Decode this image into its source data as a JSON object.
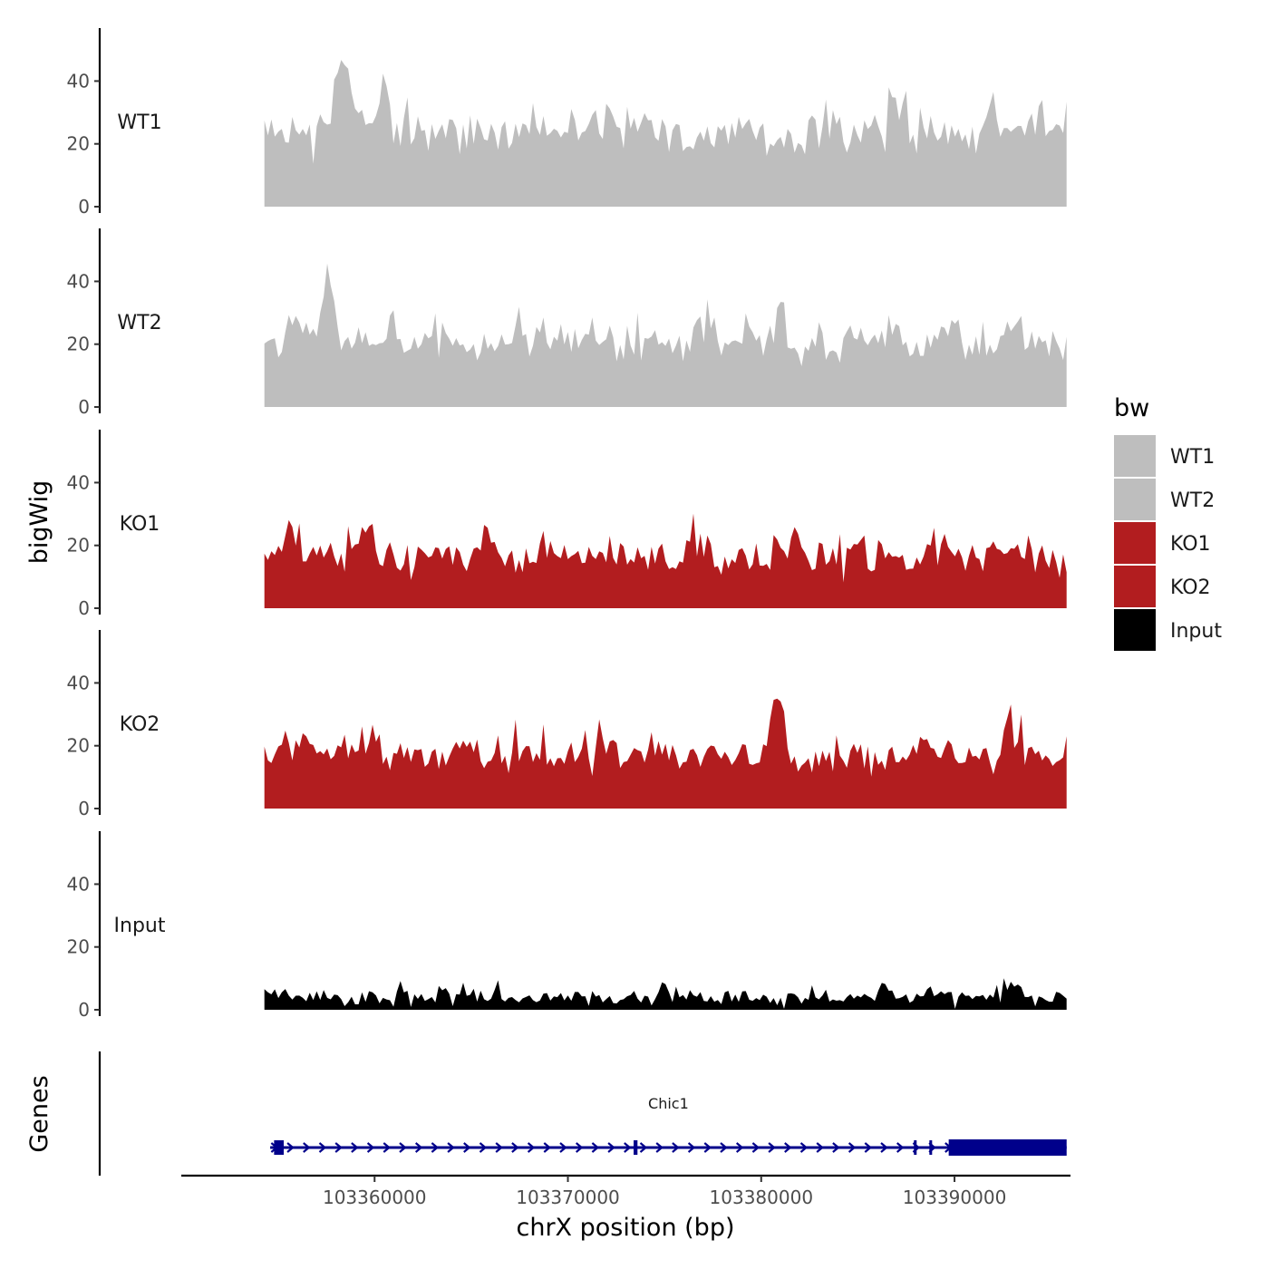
{
  "chart_data": {
    "type": "area",
    "title": "",
    "ylabel": "bigWig",
    "genes_label": "Genes",
    "xlabel": "chrX position (bp)",
    "xlim": [
      103350000,
      103396000
    ],
    "ylim": [
      0,
      56
    ],
    "x_ticks": [
      103360000,
      103370000,
      103380000,
      103390000
    ],
    "x_tick_labels": [
      "103360000",
      "103370000",
      "103380000",
      "103390000"
    ],
    "y_ticks": [
      0,
      20,
      40
    ],
    "y_tick_labels": [
      "0",
      "20",
      "40"
    ],
    "data_range": [
      103354300,
      103395800
    ],
    "legend": {
      "title": "bw",
      "position": "right"
    },
    "series": [
      {
        "name": "WT1",
        "color": "#bebebe",
        "baseline": 24,
        "spread": 10,
        "peaks": [
          [
            103358200,
            30
          ],
          [
            103358700,
            20
          ],
          [
            103360500,
            14
          ],
          [
            103373500,
            6
          ],
          [
            103387000,
            14
          ],
          [
            103392000,
            18
          ]
        ]
      },
      {
        "name": "WT2",
        "color": "#bebebe",
        "baseline": 21,
        "spread": 9,
        "peaks": [
          [
            103357500,
            22
          ],
          [
            103361000,
            8
          ],
          [
            103374500,
            4
          ],
          [
            103381000,
            10
          ],
          [
            103390000,
            8
          ],
          [
            103393000,
            10
          ]
        ]
      },
      {
        "name": "KO1",
        "color": "#b21d1f",
        "baseline": 17,
        "spread": 9,
        "peaks": [
          [
            103355800,
            14
          ],
          [
            103359800,
            12
          ],
          [
            103366000,
            6
          ],
          [
            103376500,
            10
          ],
          [
            103382000,
            8
          ],
          [
            103389500,
            6
          ]
        ]
      },
      {
        "name": "KO2",
        "color": "#b21d1f",
        "baseline": 17,
        "spread": 8,
        "peaks": [
          [
            103356500,
            8
          ],
          [
            103360000,
            8
          ],
          [
            103380800,
            20
          ],
          [
            103388600,
            8
          ],
          [
            103392900,
            16
          ]
        ]
      },
      {
        "name": "Input",
        "color": "#000000",
        "baseline": 4,
        "spread": 4,
        "peaks": [
          [
            103375100,
            7
          ],
          [
            103386500,
            4
          ],
          [
            103393000,
            6
          ]
        ]
      }
    ],
    "gene": {
      "name": "Chic1",
      "start": 103354600,
      "end": 103395800,
      "strand": "+",
      "color": "#00008b",
      "exons": [
        [
          103354800,
          103355300
        ],
        [
          103373400,
          103373600
        ],
        [
          103387900,
          103388000
        ],
        [
          103388700,
          103388800
        ],
        [
          103389700,
          103395800
        ]
      ]
    }
  }
}
